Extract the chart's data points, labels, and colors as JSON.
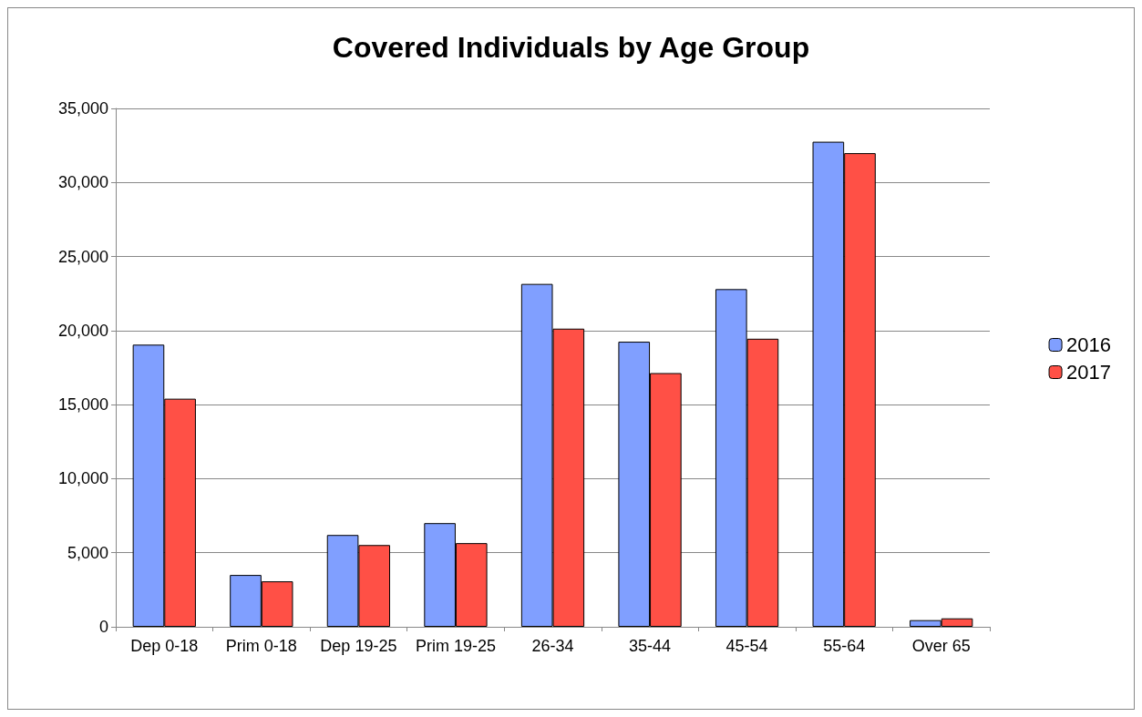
{
  "chart_data": {
    "type": "bar",
    "title": "Covered Individuals by Age Group",
    "categories": [
      "Dep 0-18",
      "Prim 0-18",
      "Dep 19-25",
      "Prim 19-25",
      "26-34",
      "35-44",
      "45-54",
      "55-64",
      "Over 65"
    ],
    "series": [
      {
        "name": "2016",
        "color": "#809fff",
        "values": [
          19050,
          3500,
          6200,
          7000,
          23150,
          19250,
          22800,
          32750,
          450
        ]
      },
      {
        "name": "2017",
        "color": "#ff5046",
        "values": [
          15400,
          3070,
          5520,
          5650,
          20130,
          17130,
          19450,
          31980,
          570
        ]
      }
    ],
    "ylim": [
      0,
      35000
    ],
    "yticks": [
      0,
      {
        "value": 5000,
        "label": "5,000"
      },
      {
        "value": 10000,
        "label": "10,000"
      },
      {
        "value": 15000,
        "label": "15,000"
      },
      {
        "value": 20000,
        "label": "20,000"
      },
      {
        "value": 25000,
        "label": "25,000"
      },
      {
        "value": 30000,
        "label": "30,000"
      },
      {
        "value": 35000,
        "label": "35,000"
      }
    ],
    "grid": "y",
    "legend": "right"
  }
}
